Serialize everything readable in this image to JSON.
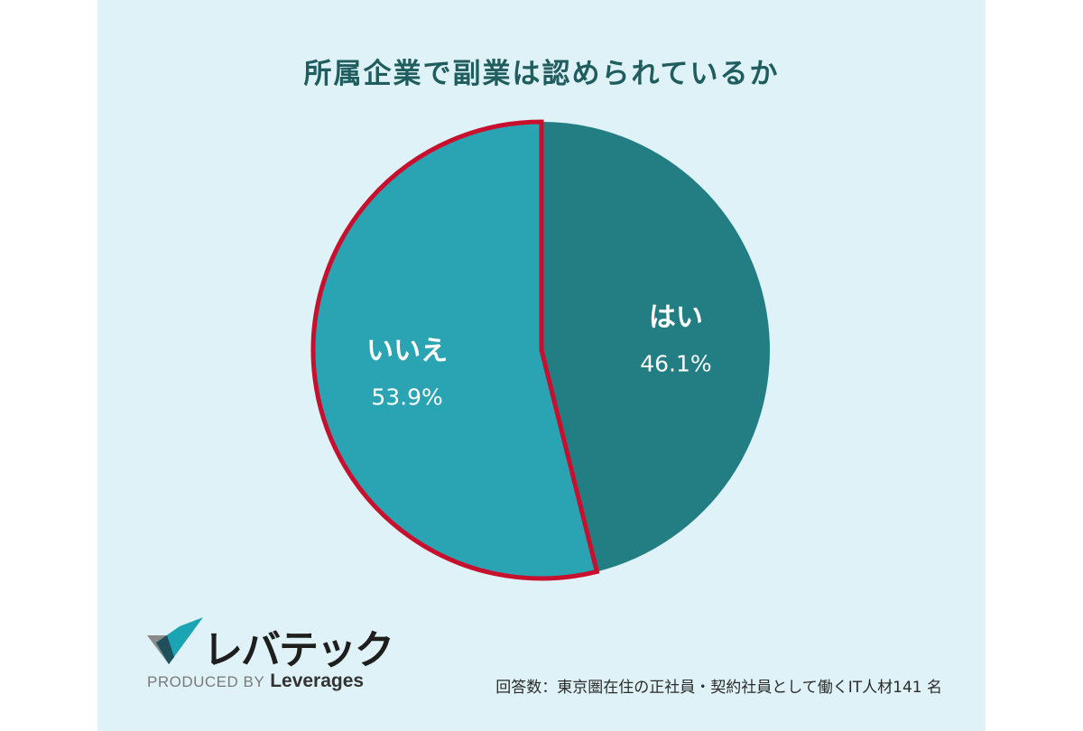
{
  "chart_data": {
    "type": "pie",
    "title": "所属企業で副業は認められているか",
    "slices": [
      {
        "label": "はい",
        "value": 46.1,
        "value_text": "46.1%",
        "color": "#237e83"
      },
      {
        "label": "いいえ",
        "value": 53.9,
        "value_text": "53.9%",
        "color": "#2aa3b3",
        "highlighted": true
      }
    ],
    "start_angle_deg": 0,
    "direction": "clockwise",
    "highlight_color": "#c8102e"
  },
  "logo": {
    "name": "レバテック",
    "produced_by": "PRODUCED BY",
    "brand": "Leverages"
  },
  "footnote": "回答数：東京圏在住の正社員・契約社員として働くIT人材141 名"
}
